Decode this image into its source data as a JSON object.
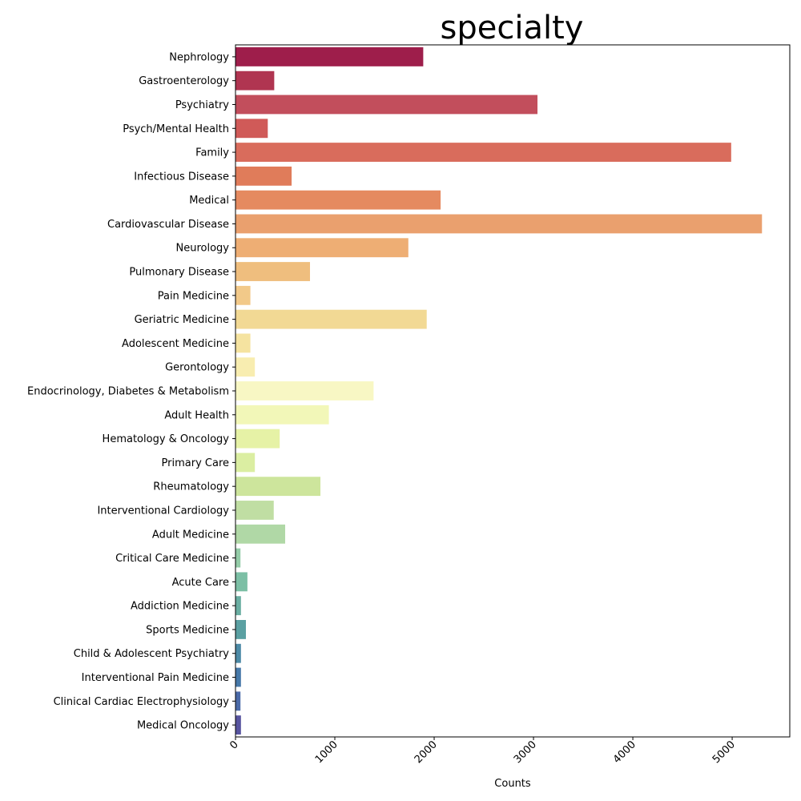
{
  "chart_data": {
    "type": "bar",
    "orientation": "horizontal",
    "title": "specialty",
    "xlabel": "Counts",
    "ylabel": "",
    "xlim": [
      0,
      5580
    ],
    "xticks": [
      "0",
      "1000",
      "2000",
      "3000",
      "4000",
      "5000"
    ],
    "xtick_values": [
      0,
      1000,
      2000,
      3000,
      4000,
      5000
    ],
    "grid": false,
    "categories": [
      "Nephrology",
      "Gastroenterology",
      "Psychiatry",
      "Psych/Mental Health",
      "Family",
      "Infectious Disease",
      "Medical",
      "Cardiovascular Disease",
      "Neurology",
      "Pulmonary Disease",
      "Pain Medicine",
      "Geriatric Medicine",
      "Adolescent Medicine",
      "Gerontology",
      "Endocrinology, Diabetes & Metabolism",
      "Adult Health",
      "Hematology & Oncology",
      "Primary Care",
      "Rheumatology",
      "Interventional Cardiology",
      "Adult Medicine",
      "Critical Care Medicine",
      "Acute Care",
      "Addiction Medicine",
      "Sports Medicine",
      "Child & Adolescent Psychiatry",
      "Interventional Pain Medicine",
      "Clinical Cardiac Electrophysiology",
      "Medical Oncology"
    ],
    "values": [
      1890,
      390,
      3040,
      325,
      4990,
      565,
      2065,
      5300,
      1740,
      750,
      150,
      1925,
      150,
      195,
      1390,
      940,
      445,
      195,
      855,
      385,
      500,
      50,
      120,
      55,
      105,
      55,
      55,
      50,
      55
    ],
    "colors": [
      "#9e1e4b",
      "#b03551",
      "#c24e5c",
      "#d05a58",
      "#d96c5c",
      "#e07c5a",
      "#e58a60",
      "#eaa06e",
      "#eeae74",
      "#efbe7e",
      "#f2c989",
      "#f2d994",
      "#f5e3a0",
      "#f8edb0",
      "#f8f7c4",
      "#f2f7b8",
      "#e6f2a6",
      "#dbeea2",
      "#cde59c",
      "#c0dea3",
      "#b0d8a6",
      "#94cca8",
      "#7cbfa5",
      "#6aaea2",
      "#5aa0a2",
      "#4d8aa6",
      "#4779a9",
      "#4b6aa8",
      "#57549f"
    ]
  }
}
